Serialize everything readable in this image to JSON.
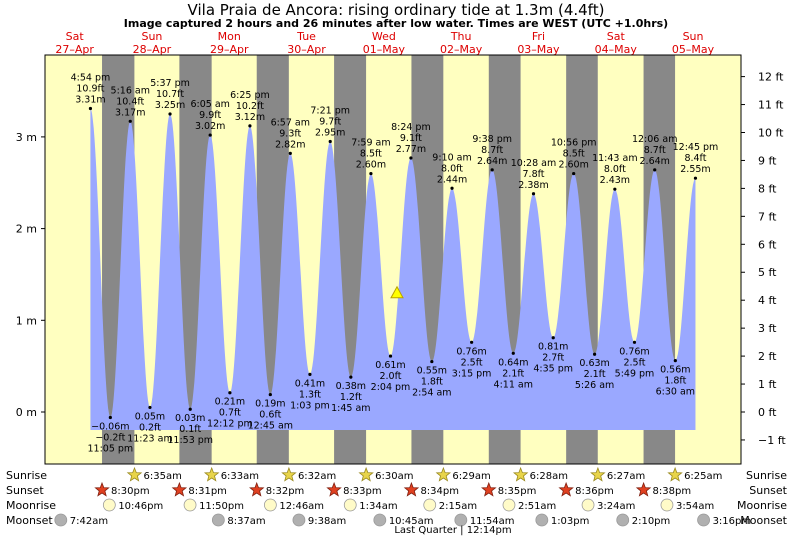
{
  "title": "Vila Praia de Ancora: rising  ordinary tide at 1.3m (4.4ft)",
  "subtitle": "Image captured 2 hours and 26 minutes after low water. Times are WEST (UTC +1.0hrs)",
  "days": [
    {
      "dow": "Sat",
      "date": "27–Apr"
    },
    {
      "dow": "Sun",
      "date": "28–Apr"
    },
    {
      "dow": "Mon",
      "date": "29–Apr"
    },
    {
      "dow": "Tue",
      "date": "30–Apr"
    },
    {
      "dow": "Wed",
      "date": "01–May"
    },
    {
      "dow": "Thu",
      "date": "02–May"
    },
    {
      "dow": "Fri",
      "date": "03–May"
    },
    {
      "dow": "Sat",
      "date": "04–May"
    },
    {
      "dow": "Sun",
      "date": "05–May"
    }
  ],
  "chart_data": {
    "type": "area",
    "y_left_ticks": [
      "0 m",
      "1 m",
      "2 m",
      "3 m"
    ],
    "y_right_ticks": [
      "−1 ft",
      "0 ft",
      "1 ft",
      "2 ft",
      "3 ft",
      "4 ft",
      "5 ft",
      "6 ft",
      "7 ft",
      "8 ft",
      "9 ft",
      "10 ft",
      "11 ft",
      "12 ft"
    ],
    "ylim_m": [
      -0.45,
      3.75
    ],
    "tides": [
      {
        "type": "high",
        "time": "4:54 pm",
        "ft": "10.9 ft",
        "m": 3.31,
        "label_m": "3.31 m"
      },
      {
        "type": "low",
        "time": "11:05 pm",
        "ft": "−0.2 ft",
        "m": -0.06,
        "label_m": "−0.06 m"
      },
      {
        "type": "high",
        "time": "5:16 am",
        "ft": "10.4 ft",
        "m": 3.17,
        "label_m": "3.17 m"
      },
      {
        "type": "low",
        "time": "11:23 am",
        "ft": "0.2 ft",
        "m": 0.05,
        "label_m": "0.05 m"
      },
      {
        "type": "high",
        "time": "5:37 pm",
        "ft": "10.7 ft",
        "m": 3.25,
        "label_m": "3.25 m"
      },
      {
        "type": "low",
        "time": "11:53 pm",
        "ft": "0.1 ft",
        "m": 0.03,
        "label_m": "0.03 m"
      },
      {
        "type": "high",
        "time": "6:05 am",
        "ft": "9.9 ft",
        "m": 3.02,
        "label_m": "3.02 m"
      },
      {
        "type": "low",
        "time": "12:12 pm",
        "ft": "0.7 ft",
        "m": 0.21,
        "label_m": "0.21 m"
      },
      {
        "type": "high",
        "time": "6:25 pm",
        "ft": "10.2 ft",
        "m": 3.12,
        "label_m": "3.12 m"
      },
      {
        "type": "low",
        "time": "12:45 am",
        "ft": "0.6 ft",
        "m": 0.19,
        "label_m": "0.19 m"
      },
      {
        "type": "high",
        "time": "6:57 am",
        "ft": "9.3 ft",
        "m": 2.82,
        "label_m": "2.82 m"
      },
      {
        "type": "low",
        "time": "1:03 pm",
        "ft": "1.3 ft",
        "m": 0.41,
        "label_m": "0.41 m"
      },
      {
        "type": "high",
        "time": "7:21 pm",
        "ft": "9.7 ft",
        "m": 2.95,
        "label_m": "2.95 m"
      },
      {
        "type": "low",
        "time": "1:45 am",
        "ft": "1.2 ft",
        "m": 0.38,
        "label_m": "0.38 m"
      },
      {
        "type": "high",
        "time": "7:59 am",
        "ft": "8.5 ft",
        "m": 2.6,
        "label_m": "2.60 m"
      },
      {
        "type": "low",
        "time": "2:04 pm",
        "ft": "2.0 ft",
        "m": 0.61,
        "label_m": "0.61 m"
      },
      {
        "type": "high",
        "time": "8:24 pm",
        "ft": "9.1 ft",
        "m": 2.77,
        "label_m": "2.77 m"
      },
      {
        "type": "low",
        "time": "2:54 am",
        "ft": "1.8 ft",
        "m": 0.55,
        "label_m": "0.55 m"
      },
      {
        "type": "high",
        "time": "9:10 am",
        "ft": "8.0 ft",
        "m": 2.44,
        "label_m": "2.44 m"
      },
      {
        "type": "low",
        "time": "3:15 pm",
        "ft": "2.5 ft",
        "m": 0.76,
        "label_m": "0.76 m"
      },
      {
        "type": "high",
        "time": "9:38 pm",
        "ft": "8.7 ft",
        "m": 2.64,
        "label_m": "2.64 m"
      },
      {
        "type": "low",
        "time": "4:11 am",
        "ft": "2.1 ft",
        "m": 0.64,
        "label_m": "0.64 m"
      },
      {
        "type": "high",
        "time": "10:28 am",
        "ft": "7.8 ft",
        "m": 2.38,
        "label_m": "2.38 m"
      },
      {
        "type": "low",
        "time": "4:35 pm",
        "ft": "2.7 ft",
        "m": 0.81,
        "label_m": "0.81 m"
      },
      {
        "type": "high",
        "time": "10:56 pm",
        "ft": "8.5 ft",
        "m": 2.6,
        "label_m": "2.60 m"
      },
      {
        "type": "low",
        "time": "5:26 am",
        "ft": "2.1 ft",
        "m": 0.63,
        "label_m": "0.63 m"
      },
      {
        "type": "high",
        "time": "11:43 am",
        "ft": "8.0 ft",
        "m": 2.43,
        "label_m": "2.43 m"
      },
      {
        "type": "low",
        "time": "5:49 pm",
        "ft": "2.5 ft",
        "m": 0.76,
        "label_m": "0.76 m"
      },
      {
        "type": "high",
        "time": "12:06 am",
        "ft": "8.7 ft",
        "m": 2.64,
        "label_m": "2.64 m"
      },
      {
        "type": "low",
        "time": "6:30 am",
        "ft": "1.8 ft",
        "m": 0.56,
        "label_m": "0.56 m"
      },
      {
        "type": "high",
        "time": "12:45 pm",
        "ft": "8.4 ft",
        "m": 2.55,
        "label_m": "2.55 m"
      }
    ],
    "current_level_m": 1.3
  },
  "rows": {
    "sunrise_label": "Sunrise",
    "sunset_label": "Sunset",
    "moonrise_label": "Moonrise",
    "moonset_label": "Moonset",
    "sunrise": [
      "6:35am",
      "6:33am",
      "6:32am",
      "6:30am",
      "6:29am",
      "6:28am",
      "6:27am",
      "6:25am"
    ],
    "sunset": [
      "8:30pm",
      "8:31pm",
      "8:32pm",
      "8:33pm",
      "8:34pm",
      "8:35pm",
      "8:36pm",
      "8:38pm"
    ],
    "moonrise": [
      "10:46pm",
      "11:50pm",
      "12:46am",
      "1:34am",
      "2:15am",
      "2:51am",
      "3:24am",
      "3:54am"
    ],
    "moonset": [
      "7:42am",
      "8:37am",
      "9:38am",
      "10:45am",
      "11:54am",
      "1:03pm",
      "2:10pm",
      "3:16pm"
    ],
    "moon_phase": "Last Quarter | 12:14pm"
  },
  "colors": {
    "day": "#ffffc0",
    "night": "#888888",
    "water": "#9aa8ff",
    "date": "#dd0000"
  }
}
